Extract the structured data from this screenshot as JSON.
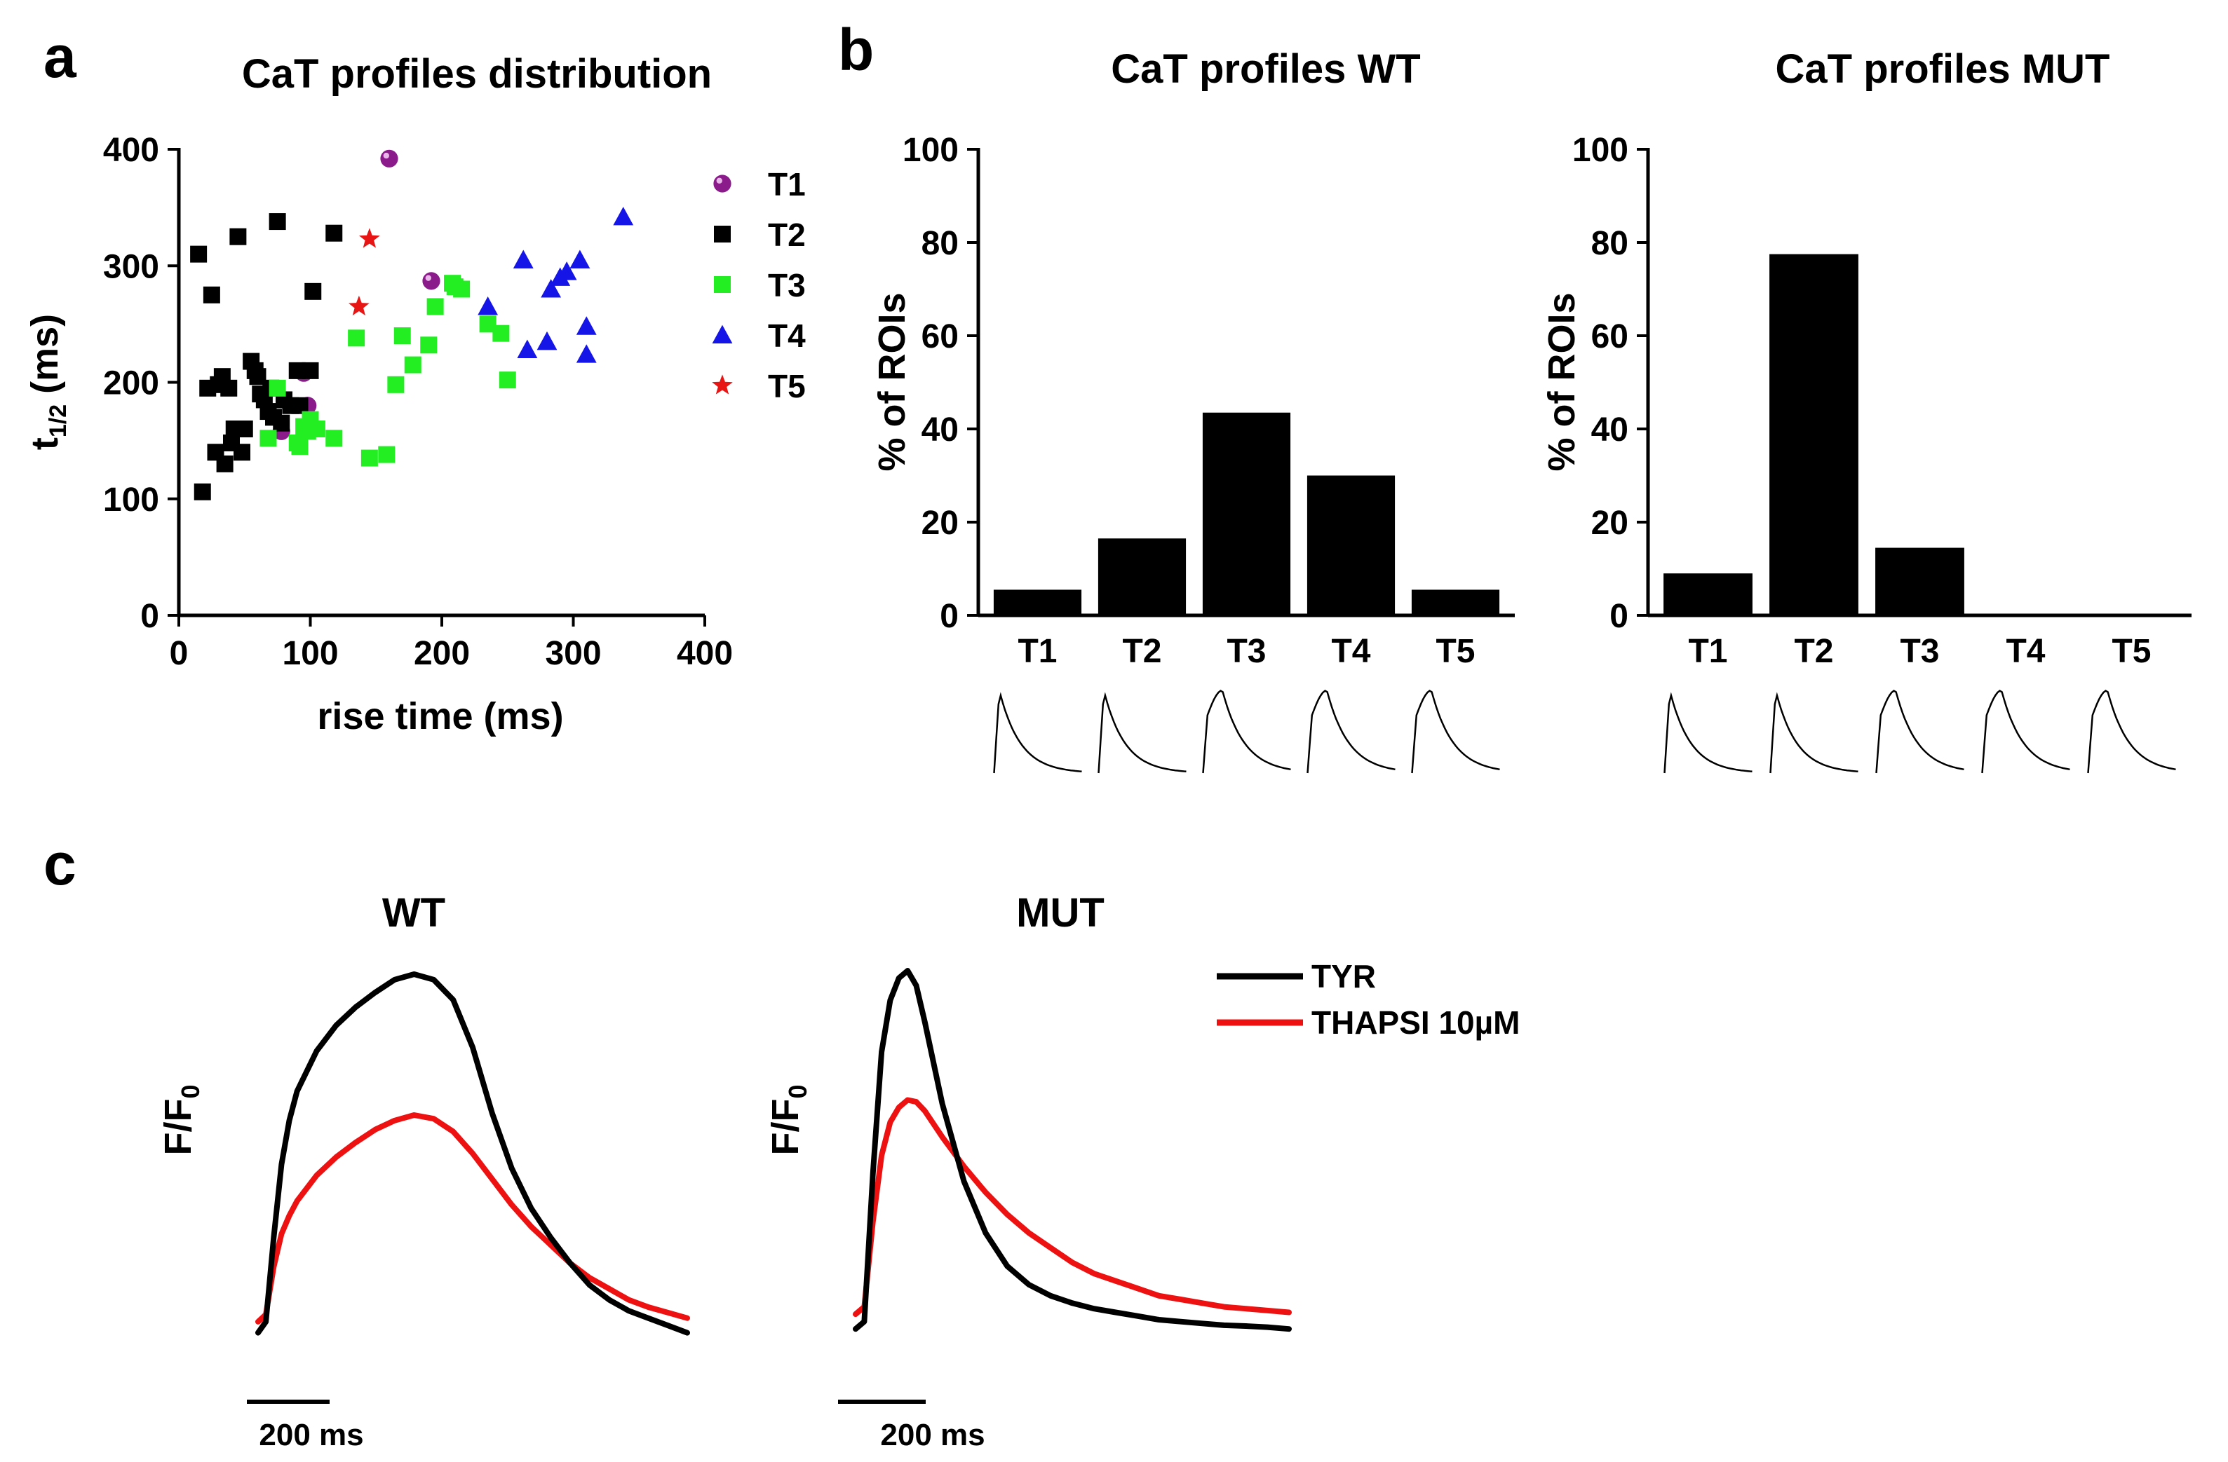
{
  "panels": {
    "a": {
      "letter": "a",
      "chart_data": {
        "type": "scatter",
        "title": "CaT profiles distribution",
        "xlabel": "rise time (ms)",
        "ylabel_main": "t",
        "ylabel_sub": "1/2",
        "ylabel_unit": " (ms)",
        "xlim": [
          0,
          400
        ],
        "ylim": [
          0,
          400
        ],
        "xticks": [
          0,
          100,
          200,
          300,
          400
        ],
        "yticks": [
          0,
          100,
          200,
          300,
          400
        ],
        "series": [
          {
            "name": "T1",
            "marker": "sphere",
            "color": "#8B1A8B",
            "x": [
              160,
              95,
              98,
              78,
              192
            ],
            "y": [
              392,
              208,
              180,
              158,
              287
            ]
          },
          {
            "name": "T2",
            "marker": "square",
            "color": "#000000",
            "x": [
              15,
              18,
              25,
              22,
              28,
              30,
              35,
              33,
              38,
              40,
              42,
              45,
              48,
              50,
              55,
              58,
              60,
              62,
              65,
              68,
              70,
              72,
              75,
              78,
              80,
              85,
              90,
              92,
              100,
              102,
              118
            ],
            "y": [
              310,
              106,
              275,
              195,
              140,
              198,
              130,
              205,
              195,
              148,
              160,
              325,
              140,
              160,
              218,
              210,
              205,
              190,
              185,
              175,
              195,
              170,
              338,
              165,
              185,
              180,
              210,
              180,
              210,
              278,
              328
            ]
          },
          {
            "name": "T3",
            "marker": "square",
            "color": "#22EE22",
            "x": [
              68,
              75,
              90,
              92,
              95,
              98,
              100,
              105,
              118,
              135,
              145,
              158,
              165,
              170,
              178,
              190,
              195,
              208,
              210,
              215,
              235,
              245,
              250
            ],
            "y": [
              152,
              195,
              148,
              145,
              162,
              158,
              168,
              160,
              152,
              238,
              135,
              138,
              198,
              240,
              215,
              232,
              265,
              285,
              282,
              280,
              250,
              242,
              202
            ]
          },
          {
            "name": "T4",
            "marker": "triangle",
            "color": "#1515E8",
            "x": [
              235,
              262,
              265,
              280,
              283,
              290,
              295,
              305,
              310,
              310,
              338
            ],
            "y": [
              265,
              305,
              228,
              235,
              280,
              290,
              295,
              305,
              248,
              224,
              342
            ]
          },
          {
            "name": "T5",
            "marker": "star",
            "color": "#E81515",
            "x": [
              145,
              137
            ],
            "y": [
              323,
              265
            ]
          }
        ],
        "legend": "right"
      }
    },
    "b": {
      "letter": "b",
      "chart_data": [
        {
          "type": "bar",
          "title": "CaT profiles WT",
          "ylabel": "% of ROIs",
          "ylim": [
            0,
            100
          ],
          "yticks": [
            0,
            20,
            40,
            60,
            80,
            100
          ],
          "categories": [
            "T1",
            "T2",
            "T3",
            "T4",
            "T5"
          ],
          "values": [
            5.5,
            16.5,
            43.5,
            30,
            5.5
          ],
          "profile_shapes": [
            "sharp-decay",
            "sharp-decay",
            "rounded",
            "rounded",
            "rounded"
          ]
        },
        {
          "type": "bar",
          "title": "CaT profiles MUT",
          "ylabel": "% of ROIs",
          "ylim": [
            0,
            100
          ],
          "yticks": [
            0,
            20,
            40,
            60,
            80,
            100
          ],
          "categories": [
            "T1",
            "T2",
            "T3",
            "T4",
            "T5"
          ],
          "values": [
            9,
            77.5,
            14.5,
            0,
            0
          ],
          "profile_shapes": [
            "sharp-decay",
            "sharp-decay",
            "rounded",
            "rounded",
            "rounded"
          ]
        }
      ]
    },
    "c": {
      "letter": "c",
      "chart_data": [
        {
          "type": "line",
          "title": "WT",
          "ylabel_main": "F/F",
          "ylabel_sub": "0",
          "scalebar_label": "200 ms",
          "time_ms": [
            0,
            20,
            40,
            60,
            80,
            100,
            150,
            200,
            250,
            300,
            350,
            400,
            450,
            500,
            550,
            600,
            650,
            700,
            750,
            800,
            850,
            900,
            950,
            1000,
            1050,
            1100
          ],
          "series": [
            {
              "name": "TYR",
              "color": "#000000",
              "values": [
                0.02,
                0.05,
                0.28,
                0.48,
                0.6,
                0.68,
                0.79,
                0.86,
                0.91,
                0.95,
                0.985,
                1.0,
                0.985,
                0.93,
                0.8,
                0.62,
                0.47,
                0.36,
                0.28,
                0.21,
                0.15,
                0.11,
                0.08,
                0.06,
                0.04,
                0.02
              ]
            },
            {
              "name": "THAPSI 10µM",
              "color": "#EE1111",
              "values": [
                0.05,
                0.07,
                0.2,
                0.29,
                0.34,
                0.38,
                0.45,
                0.5,
                0.54,
                0.575,
                0.6,
                0.615,
                0.605,
                0.57,
                0.51,
                0.44,
                0.37,
                0.31,
                0.26,
                0.21,
                0.17,
                0.14,
                0.11,
                0.09,
                0.075,
                0.06
              ]
            }
          ]
        },
        {
          "type": "line",
          "title": "MUT",
          "ylabel_main": "F/F",
          "ylabel_sub": "0",
          "scalebar_label": "200 ms",
          "time_ms": [
            0,
            20,
            40,
            60,
            80,
            100,
            120,
            140,
            160,
            200,
            250,
            300,
            350,
            400,
            450,
            500,
            550,
            600,
            650,
            700,
            750,
            800,
            850,
            900,
            950,
            1000
          ],
          "series": [
            {
              "name": "TYR",
              "color": "#000000",
              "values": [
                0.03,
                0.05,
                0.45,
                0.78,
                0.92,
                0.98,
                1.0,
                0.96,
                0.86,
                0.64,
                0.43,
                0.29,
                0.2,
                0.15,
                0.12,
                0.1,
                0.085,
                0.075,
                0.065,
                0.055,
                0.05,
                0.045,
                0.04,
                0.038,
                0.035,
                0.03
              ]
            },
            {
              "name": "THAPSI 10µM",
              "color": "#EE1111",
              "values": [
                0.07,
                0.09,
                0.32,
                0.5,
                0.59,
                0.63,
                0.65,
                0.645,
                0.62,
                0.55,
                0.47,
                0.4,
                0.34,
                0.29,
                0.25,
                0.21,
                0.18,
                0.16,
                0.14,
                0.12,
                0.11,
                0.1,
                0.09,
                0.085,
                0.08,
                0.075
              ]
            }
          ]
        }
      ],
      "legend": {
        "entries": [
          "TYR",
          "THAPSI 10µM"
        ]
      }
    }
  }
}
